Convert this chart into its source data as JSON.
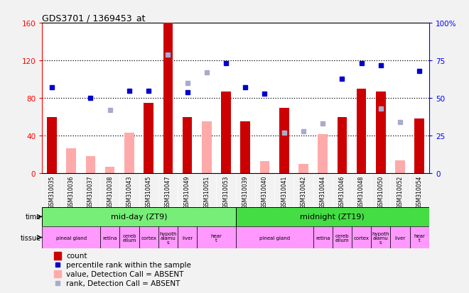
{
  "title": "GDS3701 / 1369453_at",
  "samples": [
    "GSM310035",
    "GSM310036",
    "GSM310037",
    "GSM310038",
    "GSM310043",
    "GSM310045",
    "GSM310047",
    "GSM310049",
    "GSM310051",
    "GSM310053",
    "GSM310039",
    "GSM310040",
    "GSM310041",
    "GSM310042",
    "GSM310044",
    "GSM310046",
    "GSM310048",
    "GSM310050",
    "GSM310052",
    "GSM310054"
  ],
  "count_present": [
    60,
    0,
    0,
    0,
    0,
    75,
    160,
    60,
    0,
    87,
    55,
    0,
    70,
    0,
    0,
    60,
    90,
    87,
    0,
    58
  ],
  "count_absent": [
    0,
    27,
    18,
    7,
    43,
    0,
    0,
    0,
    55,
    0,
    0,
    13,
    0,
    10,
    42,
    0,
    0,
    0,
    14,
    0
  ],
  "pct_present": [
    57,
    0,
    50,
    0,
    55,
    55,
    79,
    54,
    0,
    73,
    57,
    53,
    0,
    0,
    0,
    63,
    73,
    72,
    0,
    68
  ],
  "pct_absent": [
    0,
    0,
    0,
    42,
    0,
    0,
    79,
    60,
    67,
    0,
    0,
    0,
    27,
    28,
    33,
    0,
    0,
    43,
    34,
    0
  ],
  "ylim_left": [
    0,
    160
  ],
  "ylim_right": [
    0,
    100
  ],
  "yticks_left": [
    0,
    40,
    80,
    120,
    160
  ],
  "yticks_right": [
    0,
    25,
    50,
    75,
    100
  ],
  "ytick_labels_right": [
    "0",
    "25",
    "50",
    "75",
    "100%"
  ],
  "bar_color": "#cc0000",
  "bar_absent_color": "#ffaaaa",
  "dot_color": "#0000cc",
  "dot_absent_color": "#aaaacc",
  "bg_color": "#f2f2f2",
  "plot_bg": "#ffffff",
  "time_color_mid": "#77ee77",
  "time_color_midnight": "#44dd44",
  "tissue_color": "#ff99ff",
  "tick_bg_color": "#cccccc",
  "tissue_boxes": [
    [
      -0.5,
      2.5,
      "pineal gland"
    ],
    [
      2.5,
      3.5,
      "retina"
    ],
    [
      3.5,
      4.5,
      "cereb\nellum"
    ],
    [
      4.5,
      5.5,
      "cortex"
    ],
    [
      5.5,
      6.5,
      "hypoth\nalamu\ns"
    ],
    [
      6.5,
      7.5,
      "liver"
    ],
    [
      7.5,
      9.5,
      "hear\nt"
    ],
    [
      9.5,
      13.5,
      "pineal gland"
    ],
    [
      13.5,
      14.5,
      "retina"
    ],
    [
      14.5,
      15.5,
      "cereb\nellum"
    ],
    [
      15.5,
      16.5,
      "cortex"
    ],
    [
      16.5,
      17.5,
      "hypoth\nalamu\ns"
    ],
    [
      17.5,
      18.5,
      "liver"
    ],
    [
      18.5,
      19.5,
      "hear\nt"
    ]
  ]
}
